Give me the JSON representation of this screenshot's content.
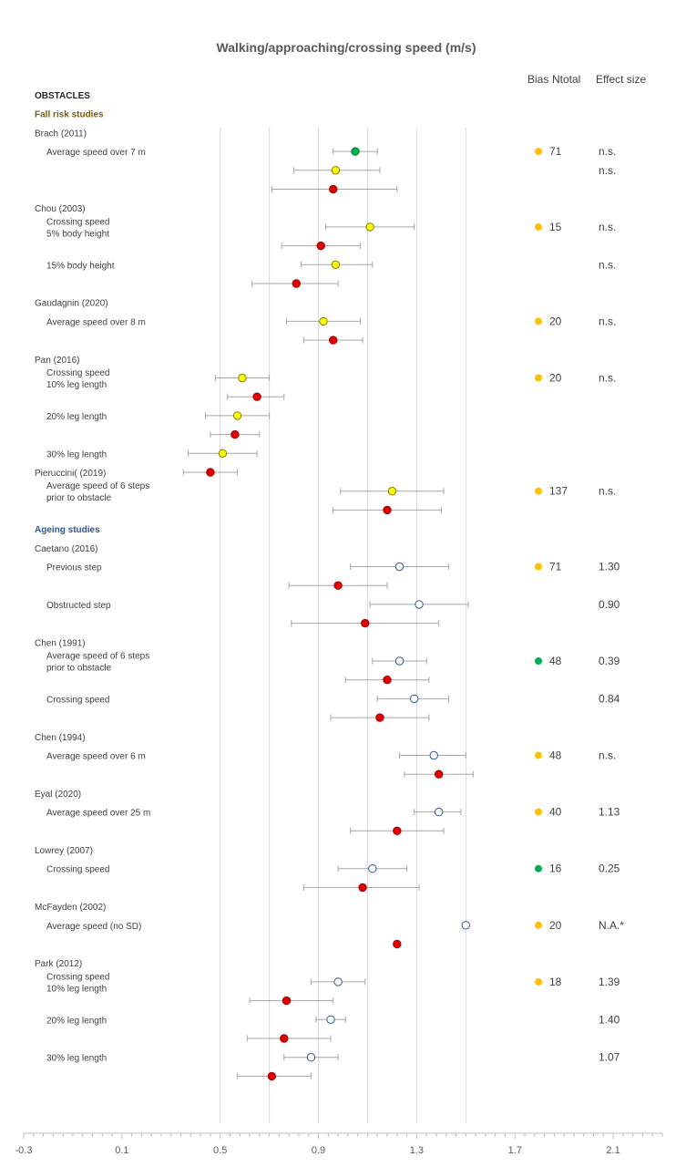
{
  "chart_data": {
    "type": "scatter",
    "title": "Walking/approaching/crossing speed (m/s)",
    "xlim": [
      -0.3,
      2.3
    ],
    "x_ticks": [
      "-0.3",
      "0.1",
      "0.5",
      "0.9",
      "1.3",
      "1.7",
      "2.1"
    ],
    "gridlines_at": [
      0.5,
      0.7,
      0.9,
      1.1,
      1.3,
      1.5
    ],
    "headers": {
      "bias": "Bias",
      "ntotal": "Ntotal",
      "effect": "Effect size"
    },
    "sections": [
      {
        "label": "OBSTACLES",
        "row": 0
      },
      {
        "label": "Fall risk studies",
        "row": 1,
        "kind": "fall"
      },
      {
        "label": "Ageing studies",
        "row": 23,
        "kind": "age"
      }
    ],
    "colors": {
      "green": "#00b050",
      "yellow": "#ffff00",
      "red": "#e00000",
      "open_blue": "#2f5597",
      "bias_yellow": "#ffc000",
      "bias_green": "#00b050",
      "error_bar": "#a6a6a6",
      "grid": "#d9d9d9"
    },
    "studies": [
      {
        "study": "Brach (2011)",
        "row": 2
      },
      {
        "study": "Chou (2003)",
        "row": 6
      },
      {
        "study": "Gaudagnin (2020)",
        "row": 11
      },
      {
        "study": "Pan (2016)",
        "row": 14
      },
      {
        "study": "Pieruccini( (2019)",
        "row": 20
      },
      {
        "study": "Caetano (2016)",
        "row": 24
      },
      {
        "study": "Chen (1991)",
        "row": 29
      },
      {
        "study": "Chen (1994)",
        "row": 34
      },
      {
        "study": "Eyal (2020)",
        "row": 37
      },
      {
        "study": "Lowrey (2007)",
        "row": 40
      },
      {
        "study": "McFayden (2002)",
        "row": 43
      },
      {
        "study": "Park (2012)",
        "row": 46
      }
    ],
    "conditions": [
      {
        "lines": [
          "Average speed over 7 m"
        ],
        "row": 3
      },
      {
        "lines": [
          "Crossing speed",
          "5% body height"
        ],
        "row": 7
      },
      {
        "lines": [
          "15% body height"
        ],
        "row": 9
      },
      {
        "lines": [
          "Average speed over 8 m"
        ],
        "row": 12
      },
      {
        "lines": [
          "Crossing speed",
          "10% leg length"
        ],
        "row": 15
      },
      {
        "lines": [
          "20% leg length"
        ],
        "row": 17
      },
      {
        "lines": [
          "30% leg length"
        ],
        "row": 19
      },
      {
        "lines": [
          "Average speed of 6 steps",
          "prior to obstacle"
        ],
        "row": 21
      },
      {
        "lines": [
          "Previous step"
        ],
        "row": 25
      },
      {
        "lines": [
          "Obstructed step"
        ],
        "row": 27
      },
      {
        "lines": [
          "Average speed of 6 steps",
          "prior to obstacle"
        ],
        "row": 30
      },
      {
        "lines": [
          "Crossing speed"
        ],
        "row": 32
      },
      {
        "lines": [
          "Average speed over 6 m"
        ],
        "row": 35
      },
      {
        "lines": [
          "Average speed over 25 m"
        ],
        "row": 38
      },
      {
        "lines": [
          "Crossing speed"
        ],
        "row": 41
      },
      {
        "lines": [
          "Average speed (no SD)"
        ],
        "row": 44
      },
      {
        "lines": [
          "Crossing speed",
          "10% leg length"
        ],
        "row": 47
      },
      {
        "lines": [
          "20% leg length"
        ],
        "row": 49
      },
      {
        "lines": [
          "30% leg length"
        ],
        "row": 51
      }
    ],
    "points": [
      {
        "row": 3,
        "mean": 1.05,
        "lo": 0.96,
        "hi": 1.14,
        "style": "green"
      },
      {
        "row": 4,
        "mean": 0.97,
        "lo": 0.8,
        "hi": 1.15,
        "style": "yellow"
      },
      {
        "row": 5,
        "mean": 0.96,
        "lo": 0.71,
        "hi": 1.22,
        "style": "red"
      },
      {
        "row": 7,
        "mean": 1.11,
        "lo": 0.93,
        "hi": 1.29,
        "style": "yellow"
      },
      {
        "row": 8,
        "mean": 0.91,
        "lo": 0.75,
        "hi": 1.07,
        "style": "red"
      },
      {
        "row": 9,
        "mean": 0.97,
        "lo": 0.83,
        "hi": 1.12,
        "style": "yellow"
      },
      {
        "row": 10,
        "mean": 0.81,
        "lo": 0.63,
        "hi": 0.98,
        "style": "red"
      },
      {
        "row": 12,
        "mean": 0.92,
        "lo": 0.77,
        "hi": 1.07,
        "style": "yellow"
      },
      {
        "row": 13,
        "mean": 0.96,
        "lo": 0.84,
        "hi": 1.08,
        "style": "red"
      },
      {
        "row": 15,
        "mean": 0.59,
        "lo": 0.48,
        "hi": 0.7,
        "style": "yellow"
      },
      {
        "row": 16,
        "mean": 0.65,
        "lo": 0.53,
        "hi": 0.76,
        "style": "red"
      },
      {
        "row": 17,
        "mean": 0.57,
        "lo": 0.44,
        "hi": 0.7,
        "style": "yellow"
      },
      {
        "row": 18,
        "mean": 0.56,
        "lo": 0.46,
        "hi": 0.66,
        "style": "red"
      },
      {
        "row": 19,
        "mean": 0.51,
        "lo": 0.37,
        "hi": 0.65,
        "style": "yellow"
      },
      {
        "row": 20,
        "mean": 0.46,
        "lo": 0.35,
        "hi": 0.57,
        "style": "red"
      },
      {
        "row": 21,
        "mean": 1.2,
        "lo": 0.99,
        "hi": 1.41,
        "style": "yellow"
      },
      {
        "row": 22,
        "mean": 1.18,
        "lo": 0.96,
        "hi": 1.4,
        "style": "red"
      },
      {
        "row": 25,
        "mean": 1.23,
        "lo": 1.03,
        "hi": 1.43,
        "style": "open"
      },
      {
        "row": 26,
        "mean": 0.98,
        "lo": 0.78,
        "hi": 1.18,
        "style": "red"
      },
      {
        "row": 27,
        "mean": 1.31,
        "lo": 1.11,
        "hi": 1.51,
        "style": "open"
      },
      {
        "row": 28,
        "mean": 1.09,
        "lo": 0.79,
        "hi": 1.39,
        "style": "red"
      },
      {
        "row": 30,
        "mean": 1.23,
        "lo": 1.12,
        "hi": 1.34,
        "style": "open"
      },
      {
        "row": 31,
        "mean": 1.18,
        "lo": 1.01,
        "hi": 1.35,
        "style": "red"
      },
      {
        "row": 32,
        "mean": 1.29,
        "lo": 1.14,
        "hi": 1.43,
        "style": "open"
      },
      {
        "row": 33,
        "mean": 1.15,
        "lo": 0.95,
        "hi": 1.35,
        "style": "red"
      },
      {
        "row": 35,
        "mean": 1.37,
        "lo": 1.23,
        "hi": 1.5,
        "style": "open"
      },
      {
        "row": 36,
        "mean": 1.39,
        "lo": 1.25,
        "hi": 1.53,
        "style": "red"
      },
      {
        "row": 38,
        "mean": 1.39,
        "lo": 1.29,
        "hi": 1.48,
        "style": "open"
      },
      {
        "row": 39,
        "mean": 1.22,
        "lo": 1.03,
        "hi": 1.41,
        "style": "red"
      },
      {
        "row": 41,
        "mean": 1.12,
        "lo": 0.98,
        "hi": 1.26,
        "style": "open"
      },
      {
        "row": 42,
        "mean": 1.08,
        "lo": 0.84,
        "hi": 1.31,
        "style": "red"
      },
      {
        "row": 44,
        "mean": 1.5,
        "style": "open"
      },
      {
        "row": 45,
        "mean": 1.22,
        "style": "red"
      },
      {
        "row": 47,
        "mean": 0.98,
        "lo": 0.87,
        "hi": 1.09,
        "style": "open"
      },
      {
        "row": 48,
        "mean": 0.77,
        "lo": 0.62,
        "hi": 0.96,
        "style": "red"
      },
      {
        "row": 49,
        "mean": 0.95,
        "lo": 0.89,
        "hi": 1.01,
        "style": "open"
      },
      {
        "row": 50,
        "mean": 0.76,
        "lo": 0.61,
        "hi": 0.95,
        "style": "red"
      },
      {
        "row": 51,
        "mean": 0.87,
        "lo": 0.76,
        "hi": 0.98,
        "style": "open"
      },
      {
        "row": 52,
        "mean": 0.71,
        "lo": 0.57,
        "hi": 0.87,
        "style": "red"
      }
    ],
    "bias": [
      {
        "row": 3,
        "color": "yellow"
      },
      {
        "row": 7,
        "color": "yellow"
      },
      {
        "row": 12,
        "color": "yellow"
      },
      {
        "row": 15,
        "color": "yellow"
      },
      {
        "row": 21,
        "color": "yellow"
      },
      {
        "row": 25,
        "color": "yellow"
      },
      {
        "row": 30,
        "color": "green"
      },
      {
        "row": 35,
        "color": "yellow"
      },
      {
        "row": 38,
        "color": "yellow"
      },
      {
        "row": 41,
        "color": "green"
      },
      {
        "row": 44,
        "color": "yellow"
      },
      {
        "row": 47,
        "color": "yellow"
      }
    ],
    "ntotal": [
      {
        "row": 3,
        "value": "71"
      },
      {
        "row": 7,
        "value": "15"
      },
      {
        "row": 12,
        "value": "20"
      },
      {
        "row": 15,
        "value": "20"
      },
      {
        "row": 21,
        "value": "137"
      },
      {
        "row": 25,
        "value": "71"
      },
      {
        "row": 30,
        "value": "48"
      },
      {
        "row": 35,
        "value": "48"
      },
      {
        "row": 38,
        "value": "40"
      },
      {
        "row": 41,
        "value": "16"
      },
      {
        "row": 44,
        "value": "20"
      },
      {
        "row": 47,
        "value": "18"
      }
    ],
    "effect": [
      {
        "row": 3,
        "value": "n.s."
      },
      {
        "row": 4,
        "value": "n.s."
      },
      {
        "row": 7,
        "value": "n.s."
      },
      {
        "row": 9,
        "value": "n.s."
      },
      {
        "row": 12,
        "value": "n.s."
      },
      {
        "row": 15,
        "value": "n.s."
      },
      {
        "row": 21,
        "value": "n.s."
      },
      {
        "row": 25,
        "value": "1.30"
      },
      {
        "row": 27,
        "value": "0.90"
      },
      {
        "row": 30,
        "value": "0.39"
      },
      {
        "row": 32,
        "value": "0.84"
      },
      {
        "row": 35,
        "value": "n.s."
      },
      {
        "row": 38,
        "value": "1.13"
      },
      {
        "row": 41,
        "value": "0.25"
      },
      {
        "row": 44,
        "value": "N.A.*"
      },
      {
        "row": 47,
        "value": "1.39"
      },
      {
        "row": 49,
        "value": "1.40"
      },
      {
        "row": 51,
        "value": "1.07"
      }
    ]
  }
}
